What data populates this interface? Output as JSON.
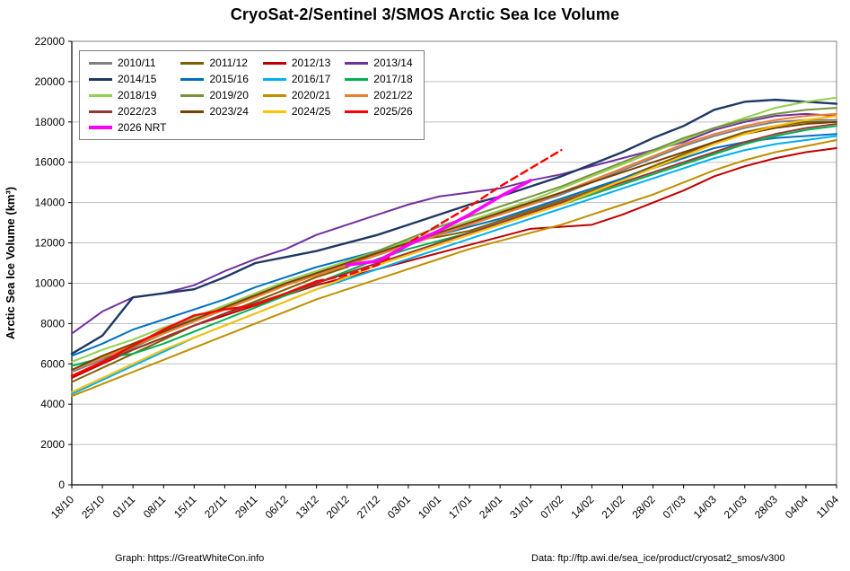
{
  "title": "CryoSat-2/Sentinel 3/SMOS Arctic Sea Ice Volume",
  "footer": {
    "left": "Graph: https://GreatWhiteCon.info",
    "right": "Data: ftp://ftp.awi.de/sea_ice/product/cryosat2_smos/v300"
  },
  "chart_data": {
    "type": "line",
    "title": "CryoSat-2/Sentinel 3/SMOS Arctic Sea Ice Volume",
    "xlabel": "",
    "ylabel": "Arctic Sea Ice Volume (km³)",
    "ylim": [
      0,
      22000
    ],
    "ytick": 2000,
    "grid": "horizontal",
    "legend_position": "top-left",
    "x_labels": [
      "18/10",
      "25/10",
      "01/11",
      "08/11",
      "15/11",
      "22/11",
      "29/11",
      "06/12",
      "13/12",
      "20/12",
      "27/12",
      "03/01",
      "10/01",
      "17/01",
      "24/01",
      "31/01",
      "07/02",
      "14/02",
      "21/02",
      "28/02",
      "07/03",
      "14/03",
      "21/03",
      "28/03",
      "04/04",
      "11/04"
    ],
    "series": [
      {
        "name": "2010/11",
        "color": "#808080",
        "values": [
          5600,
          6200,
          6800,
          7600,
          8300,
          8900,
          9400,
          9900,
          10400,
          10900,
          11400,
          11900,
          12400,
          12900,
          13400,
          13900,
          14400,
          15000,
          15600,
          16200,
          16800,
          17300,
          17700,
          18000,
          18100,
          18100
        ]
      },
      {
        "name": "2011/12",
        "color": "#7F6000",
        "values": [
          5100,
          5800,
          6500,
          7200,
          7900,
          8500,
          9100,
          9700,
          10300,
          10800,
          11600,
          12100,
          12300,
          12600,
          13100,
          13600,
          14100,
          14600,
          15200,
          15800,
          16400,
          17000,
          17500,
          17800,
          18000,
          18000
        ]
      },
      {
        "name": "2012/13",
        "color": "#C00000",
        "values": [
          5300,
          6000,
          6700,
          7300,
          7900,
          8400,
          8900,
          9400,
          9900,
          10300,
          10700,
          11100,
          11500,
          11900,
          12300,
          12700,
          12800,
          12900,
          13400,
          14000,
          14600,
          15300,
          15800,
          16200,
          16500,
          16700
        ]
      },
      {
        "name": "2013/14",
        "color": "#7030A0",
        "values": [
          7500,
          8600,
          9300,
          9500,
          9900,
          10600,
          11200,
          11700,
          12400,
          12900,
          13400,
          13900,
          14300,
          14500,
          14700,
          15100,
          15400,
          15800,
          16200,
          16600,
          17000,
          17600,
          18000,
          18300,
          18400,
          18300
        ]
      },
      {
        "name": "2014/15",
        "color": "#1F3864",
        "width": 2.4,
        "values": [
          6500,
          7400,
          9300,
          9500,
          9700,
          10300,
          11000,
          11300,
          11600,
          12000,
          12400,
          12900,
          13400,
          13900,
          14300,
          14800,
          15300,
          15900,
          16500,
          17200,
          17800,
          18600,
          19000,
          19100,
          19000,
          18900
        ]
      },
      {
        "name": "2015/16",
        "color": "#0070C0",
        "values": [
          6400,
          7000,
          7700,
          8200,
          8700,
          9200,
          9800,
          10300,
          10800,
          11200,
          11600,
          12000,
          12400,
          12800,
          13200,
          13700,
          14200,
          14700,
          15200,
          15700,
          16200,
          16700,
          17000,
          17200,
          17300,
          17400
        ]
      },
      {
        "name": "2016/17",
        "color": "#00B0F0",
        "values": [
          4500,
          5200,
          5900,
          6600,
          7300,
          7900,
          8500,
          9100,
          9700,
          10200,
          10700,
          11200,
          11700,
          12200,
          12700,
          13200,
          13700,
          14200,
          14700,
          15200,
          15700,
          16200,
          16600,
          16900,
          17100,
          17300
        ]
      },
      {
        "name": "2017/18",
        "color": "#00B050",
        "values": [
          5900,
          6300,
          6500,
          7000,
          7600,
          8200,
          8800,
          9400,
          10000,
          10600,
          11200,
          11700,
          12100,
          12500,
          12900,
          13400,
          13900,
          14400,
          14900,
          15400,
          15900,
          16400,
          16900,
          17300,
          17600,
          17800
        ]
      },
      {
        "name": "2018/19",
        "color": "#92D050",
        "values": [
          6100,
          6700,
          7200,
          7800,
          8300,
          8900,
          9500,
          10100,
          10600,
          11100,
          11600,
          12100,
          12600,
          13100,
          13600,
          14100,
          14700,
          15300,
          15900,
          16500,
          17100,
          17700,
          18200,
          18700,
          19000,
          19200
        ]
      },
      {
        "name": "2019/20",
        "color": "#76933C",
        "values": [
          5400,
          6100,
          6800,
          7500,
          8100,
          8700,
          9300,
          9900,
          10500,
          11000,
          11600,
          12200,
          12800,
          13300,
          13800,
          14300,
          14800,
          15400,
          16000,
          16600,
          17200,
          17700,
          18100,
          18400,
          18600,
          18700
        ]
      },
      {
        "name": "2020/21",
        "color": "#BF8F00",
        "values": [
          4400,
          5000,
          5600,
          6200,
          6800,
          7400,
          8000,
          8600,
          9200,
          9700,
          10200,
          10700,
          11200,
          11700,
          12100,
          12500,
          12900,
          13400,
          13900,
          14400,
          15000,
          15600,
          16100,
          16500,
          16800,
          17100
        ]
      },
      {
        "name": "2021/22",
        "color": "#ED7D31",
        "values": [
          5700,
          6300,
          6900,
          7500,
          8100,
          8700,
          9300,
          9900,
          10400,
          10900,
          11400,
          11900,
          12400,
          12900,
          13400,
          13900,
          14500,
          15100,
          15700,
          16300,
          16900,
          17400,
          17800,
          18100,
          18300,
          18400
        ]
      },
      {
        "name": "2022/23",
        "color": "#953735",
        "values": [
          5400,
          6100,
          6700,
          7300,
          7900,
          8500,
          9000,
          9500,
          10000,
          10500,
          11000,
          11500,
          12000,
          12500,
          13000,
          13500,
          14000,
          14500,
          15000,
          15500,
          16000,
          16500,
          17000,
          17400,
          17700,
          17900
        ]
      },
      {
        "name": "2023/24",
        "color": "#7B3F00",
        "values": [
          5700,
          6400,
          7000,
          7600,
          8200,
          8800,
          9400,
          10000,
          10500,
          11000,
          11500,
          12000,
          12500,
          13000,
          13500,
          14000,
          14500,
          15000,
          15500,
          16000,
          16500,
          17000,
          17400,
          17700,
          17900,
          18000
        ]
      },
      {
        "name": "2024/25",
        "color": "#FFC000",
        "values": [
          4600,
          5300,
          6000,
          6700,
          7300,
          7900,
          8500,
          9100,
          9700,
          10300,
          10900,
          11400,
          11900,
          12400,
          12900,
          13400,
          13900,
          14500,
          15100,
          15700,
          16300,
          16900,
          17400,
          17800,
          18100,
          18300
        ]
      },
      {
        "name": "2025/26",
        "color": "#FF0000",
        "width": 2.4,
        "dash_from": 8,
        "values": [
          5400,
          6100,
          6900,
          7700,
          8400,
          8700,
          8900,
          9500,
          10100,
          10400,
          10900,
          12000,
          12900,
          13800,
          14800,
          15700,
          16600
        ]
      },
      {
        "name": "2026 NRT",
        "color": "#FF00FF",
        "width": 3.6,
        "start": 9,
        "values": [
          10900,
          11100,
          11900,
          12600,
          13400,
          14300,
          15100
        ]
      }
    ]
  }
}
